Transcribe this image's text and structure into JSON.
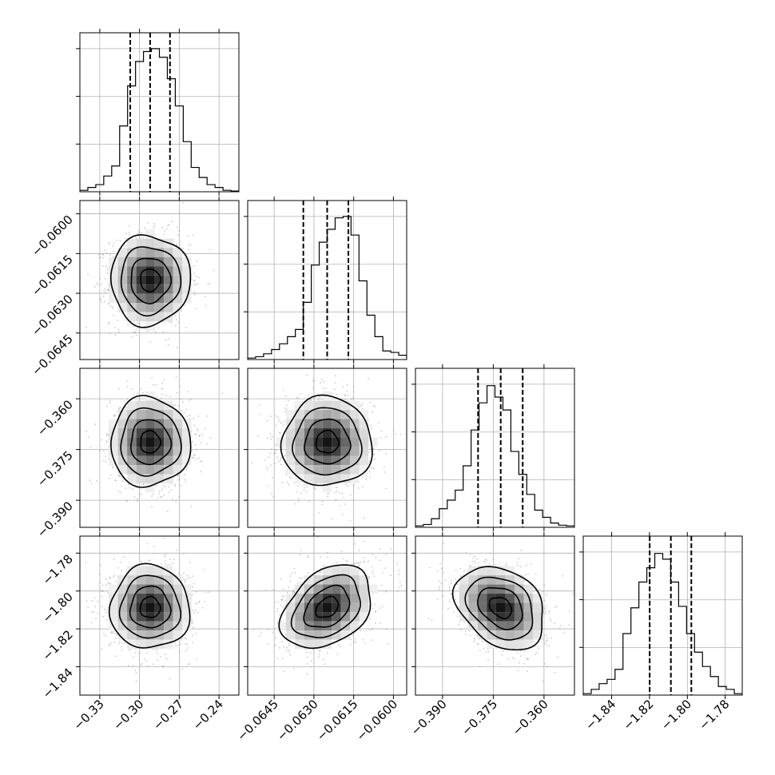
{
  "chart_data": {
    "type": "corner",
    "parameters": [
      {
        "name": "",
        "range": [
          -0.345,
          -0.225
        ],
        "ticks": [
          -0.33,
          -0.3,
          -0.27,
          -0.24
        ],
        "tick_labels": [
          "−0.33",
          "−0.30",
          "−0.27",
          "−0.24"
        ],
        "quantiles": [
          -0.307,
          -0.292,
          -0.277
        ]
      },
      {
        "name": "",
        "range": [
          -0.0655,
          -0.0595
        ],
        "ticks": [
          -0.0645,
          -0.063,
          -0.0615,
          -0.06
        ],
        "tick_labels": [
          "−0.0645",
          "−0.0630",
          "−0.0615",
          "−0.0600"
        ],
        "quantiles": [
          -0.0634,
          -0.0625,
          -0.0617
        ]
      },
      {
        "name": "",
        "range": [
          -0.398,
          -0.351
        ],
        "ticks": [
          -0.39,
          -0.375,
          -0.36
        ],
        "tick_labels": [
          "−0.390",
          "−0.375",
          "−0.360"
        ],
        "quantiles": [
          -0.3795,
          -0.3728,
          -0.3663
        ]
      },
      {
        "name": "",
        "range": [
          -1.855,
          -1.771
        ],
        "ticks": [
          -1.84,
          -1.82,
          -1.8,
          -1.78
        ],
        "tick_labels": [
          "−1.84",
          "−1.82",
          "−1.80",
          "−1.78"
        ],
        "quantiles": [
          -1.8199,
          -1.8087,
          -1.7979
        ]
      }
    ],
    "histograms": [
      [
        0.01,
        0.03,
        0.05,
        0.11,
        0.18,
        0.46,
        0.74,
        0.91,
        0.98,
        1.0,
        0.94,
        0.79,
        0.6,
        0.35,
        0.17,
        0.1,
        0.05,
        0.03,
        0.01,
        0.005
      ],
      [
        0.01,
        0.02,
        0.04,
        0.07,
        0.11,
        0.16,
        0.21,
        0.4,
        0.66,
        0.82,
        0.91,
        0.99,
        1.0,
        0.87,
        0.55,
        0.31,
        0.16,
        0.06,
        0.05,
        0.03
      ],
      [
        0.01,
        0.02,
        0.06,
        0.13,
        0.19,
        0.26,
        0.43,
        0.68,
        0.87,
        0.99,
        0.91,
        0.82,
        0.53,
        0.37,
        0.23,
        0.12,
        0.07,
        0.03,
        0.015,
        0.01
      ],
      [
        0.01,
        0.04,
        0.08,
        0.11,
        0.18,
        0.43,
        0.61,
        0.79,
        0.89,
        0.99,
        0.95,
        0.79,
        0.62,
        0.43,
        0.3,
        0.2,
        0.13,
        0.06,
        0.04,
        0.01
      ]
    ],
    "correlations": [
      [
        1,
        0,
        0,
        0
      ],
      [
        0,
        1,
        0,
        0.35
      ],
      [
        0,
        0,
        1,
        -0.3
      ],
      [
        0,
        0.35,
        -0.3,
        1
      ]
    ],
    "grid": true
  }
}
